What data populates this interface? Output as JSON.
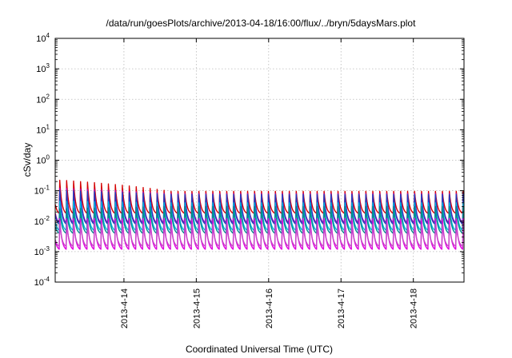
{
  "chart_data": {
    "type": "line",
    "title": "/data/run/goesPlots/archive/2013-04-18/16:00/flux/../bryn/5daysMars.plot",
    "xlabel": "Coordinated Universal Time (UTC)",
    "ylabel": "cSv/day",
    "yscale": "log",
    "ylim_exp": [
      -4,
      4
    ],
    "y_tick_labels": [
      {
        "exp": -4,
        "base": "10",
        "sup": "-4"
      },
      {
        "exp": -3,
        "base": "10",
        "sup": "-3"
      },
      {
        "exp": -2,
        "base": "10",
        "sup": "-2"
      },
      {
        "exp": -1,
        "base": "10",
        "sup": "-1"
      },
      {
        "exp": 0,
        "base": "10",
        "sup": "0"
      },
      {
        "exp": 1,
        "base": "10",
        "sup": "1"
      },
      {
        "exp": 2,
        "base": "10",
        "sup": "2"
      },
      {
        "exp": 3,
        "base": "10",
        "sup": "3"
      },
      {
        "exp": 4,
        "base": "10",
        "sup": "4"
      }
    ],
    "xlim_days": [
      0,
      5.65
    ],
    "x_ticks": [
      {
        "day": 0.95,
        "label": "2013-4-14"
      },
      {
        "day": 1.95,
        "label": "2013-4-15"
      },
      {
        "day": 2.95,
        "label": "2013-4-16"
      },
      {
        "day": 3.95,
        "label": "2013-4-17"
      },
      {
        "day": 4.95,
        "label": "2013-4-18"
      }
    ],
    "grid": true,
    "legend": "none",
    "cycles_per_day": 10.4,
    "series": [
      {
        "color": "#d40000",
        "peak_start": 0.22,
        "peak_end": 0.095,
        "trough": 0.018
      },
      {
        "color": "#b000b0",
        "peak_start": 0.12,
        "peak_end": 0.08,
        "trough": 0.009
      },
      {
        "color": "#1f3fbf",
        "peak_start": 0.1,
        "peak_end": 0.075,
        "trough": 0.008
      },
      {
        "color": "#00b8e0",
        "peak_start": 0.045,
        "peak_end": 0.04,
        "trough": 0.005
      },
      {
        "color": "#008c8c",
        "peak_start": 0.025,
        "peak_end": 0.03,
        "trough": 0.004
      },
      {
        "color": "#e000e0",
        "peak_start": 0.012,
        "peak_end": 0.012,
        "trough": 0.0012
      },
      {
        "color": "#c848c8",
        "peak_start": 0.009,
        "peak_end": 0.008,
        "trough": 0.0015
      }
    ]
  }
}
